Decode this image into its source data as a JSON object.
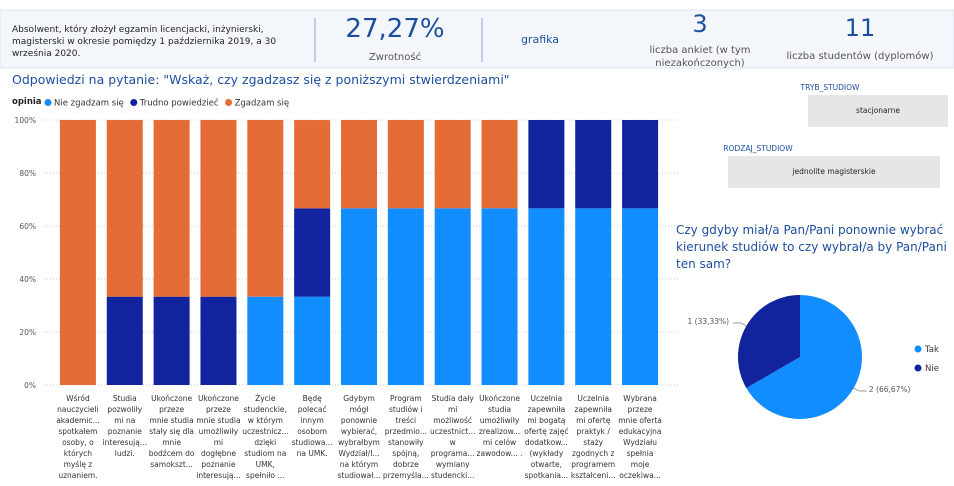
{
  "header": {
    "description": "Absolwent, który złożył egzamin licencjacki, inżynierski, magisterski w okresie pomiędzy 1 października 2019, a 30 września 2020.",
    "kpis": [
      {
        "value": "27,27%",
        "label": "Zwrotność"
      },
      {
        "value": "grafika"
      },
      {
        "value": 3,
        "label": "liczba ankiet (w tym niezakończonych)"
      },
      {
        "value": 11,
        "label": "liczba studentów (dyplomów)"
      }
    ]
  },
  "slicers": [
    {
      "title": "TRYB_STUDIOW",
      "value": "stacjonarne"
    },
    {
      "title": "RODZAJ_STUDIOW",
      "value": "jednolite magisterskie"
    }
  ],
  "chart_data": [
    {
      "type": "bar",
      "stacked": true,
      "title": "Odpowiedzi na pytanie: \"Wskaż, czy zgadzasz się z poniższymi stwierdzeniami\"",
      "legend_title": "opinia",
      "categories": [
        "Wśród nauczycieli akademic... spotkałem osoby, o których myślę z uznaniem.",
        "Studia pozwoliły mi na poznanie interesują... ludzi.",
        "Ukończone przeze mnie studia stały się dla mnie bodźcem do samokszt...",
        "Ukończone przeze mnie studia umożliwiły mi dogłębne poznanie interesują...",
        "Życie studenckie, w którym uczestnicz... dzięki studiom na UMK, spełniło ...",
        "Będę polecać innym osobom studiowa... na UMK.",
        "Gdybym mógł ponownie wybierać, wybrałbym Wydział/I... na którym studiował...",
        "Program studiów i treści przedmio... stanowiły spójną, dobrze przemyśla...",
        "Studia dały mi możliwość uczestnict... w programa... wymiany studencki...",
        "Ukończone studia umożliwiły zrealizow... mi celów zawodow... .",
        "Uczelnia zapewniła mi bogatą ofertę zajęć dodatkow... (wykłady otwarte, spotkania...",
        "Uczelnia zapewniła mi ofertę praktyk / staży zgodnych z programem kształceni...",
        "Wybrana przeze mnie oferta edukacyjna Wydziału spełnia moje oczekiwa..."
      ],
      "series": [
        {
          "name": "Nie zgadzam się",
          "color": "#118dff",
          "values": [
            0,
            0,
            0,
            0,
            33.33,
            33.33,
            66.67,
            66.67,
            66.67,
            66.67,
            66.67,
            66.67,
            66.67
          ]
        },
        {
          "name": "Trudno powiedzieć",
          "color": "#12239e",
          "values": [
            0,
            33.33,
            33.33,
            33.33,
            0,
            33.33,
            0,
            0,
            0,
            0,
            33.33,
            33.33,
            33.33
          ]
        },
        {
          "name": "Zgadzam się",
          "color": "#e66c37",
          "values": [
            100,
            66.67,
            66.67,
            66.67,
            66.67,
            33.33,
            33.33,
            33.33,
            33.33,
            33.33,
            0,
            0,
            0
          ]
        }
      ],
      "ylim": [
        0,
        100
      ],
      "yticks": [
        {
          "value": 0,
          "label": "0%"
        },
        {
          "value": 20,
          "label": "20%"
        },
        {
          "value": 40,
          "label": "40%"
        },
        {
          "value": 60,
          "label": "60%"
        },
        {
          "value": 80,
          "label": "80%"
        },
        {
          "value": 100,
          "label": "100%"
        }
      ],
      "grid": true
    },
    {
      "type": "pie",
      "title": "Czy gdyby miał/a Pan/Pani ponownie wybrać kierunek studiów to czy wybrał/a by Pan/Pani ten sam?",
      "categories": [
        "Tak",
        "Nie"
      ],
      "values": [
        2,
        1
      ],
      "value_labels": [
        "2 (66,67%)",
        "1 (33,33%)"
      ],
      "colors": [
        "#118dff",
        "#12239e"
      ]
    }
  ]
}
